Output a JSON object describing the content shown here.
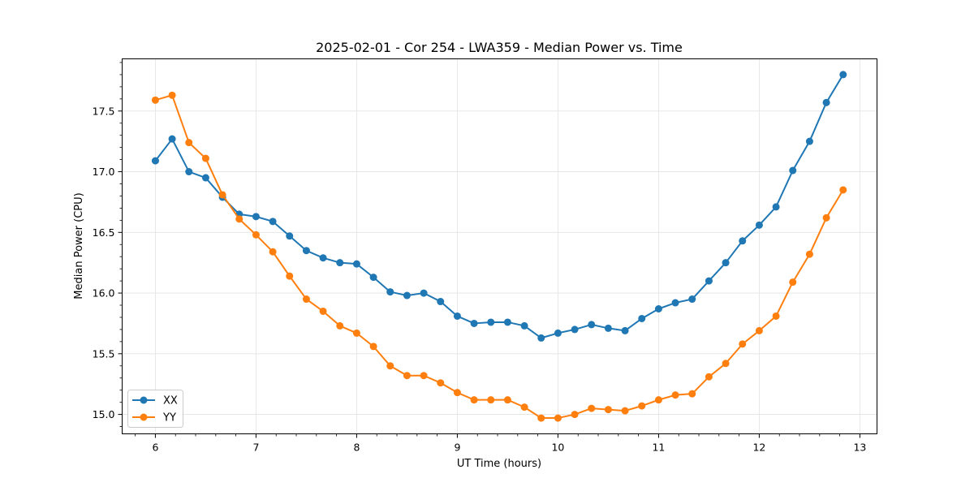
{
  "chart_data": {
    "type": "line",
    "title": "2025-02-01 - Cor 254 - LWA359 - Median Power vs. Time",
    "xlabel": "UT Time (hours)",
    "ylabel": "Median Power (CPU)",
    "xlim": [
      5.67,
      13.17
    ],
    "ylim": [
      14.84,
      17.93
    ],
    "xticks": [
      6,
      7,
      8,
      9,
      10,
      11,
      12,
      13
    ],
    "xtick_labels": [
      "6",
      "7",
      "8",
      "9",
      "10",
      "11",
      "12",
      "13"
    ],
    "yticks": [
      15.0,
      15.5,
      16.0,
      16.5,
      17.0,
      17.5
    ],
    "ytick_labels": [
      "15.0",
      "15.5",
      "16.0",
      "16.5",
      "17.0",
      "17.5"
    ],
    "grid": true,
    "legend_position": "lower-left",
    "x": [
      6.0,
      6.1667,
      6.3333,
      6.5,
      6.6667,
      6.8333,
      7.0,
      7.1667,
      7.3333,
      7.5,
      7.6667,
      7.8333,
      8.0,
      8.1667,
      8.3333,
      8.5,
      8.6667,
      8.8333,
      9.0,
      9.1667,
      9.3333,
      9.5,
      9.6667,
      9.8333,
      10.0,
      10.1667,
      10.3333,
      10.5,
      10.6667,
      10.8333,
      11.0,
      11.1667,
      11.3333,
      11.5,
      11.6667,
      11.8333,
      12.0,
      12.1667,
      12.3333,
      12.5,
      12.6667,
      12.8333
    ],
    "series": [
      {
        "name": "XX",
        "color": "#1f77b4",
        "values": [
          17.09,
          17.27,
          17.0,
          16.95,
          16.79,
          16.65,
          16.63,
          16.59,
          16.47,
          16.35,
          16.29,
          16.25,
          16.24,
          16.13,
          16.01,
          15.98,
          16.0,
          15.93,
          15.81,
          15.75,
          15.76,
          15.76,
          15.73,
          15.63,
          15.67,
          15.7,
          15.74,
          15.71,
          15.69,
          15.79,
          15.87,
          15.92,
          15.95,
          16.1,
          16.25,
          16.43,
          16.56,
          16.71,
          17.01,
          17.25,
          17.57,
          17.8
        ]
      },
      {
        "name": "YY",
        "color": "#ff7f0e",
        "values": [
          17.59,
          17.63,
          17.24,
          17.11,
          16.81,
          16.61,
          16.48,
          16.34,
          16.14,
          15.95,
          15.85,
          15.73,
          15.67,
          15.56,
          15.4,
          15.32,
          15.32,
          15.26,
          15.18,
          15.12,
          15.12,
          15.12,
          15.06,
          14.97,
          14.97,
          15.0,
          15.05,
          15.04,
          15.03,
          15.07,
          15.12,
          15.16,
          15.17,
          15.31,
          15.42,
          15.58,
          15.69,
          15.81,
          16.09,
          16.32,
          16.62,
          16.85
        ]
      }
    ]
  }
}
